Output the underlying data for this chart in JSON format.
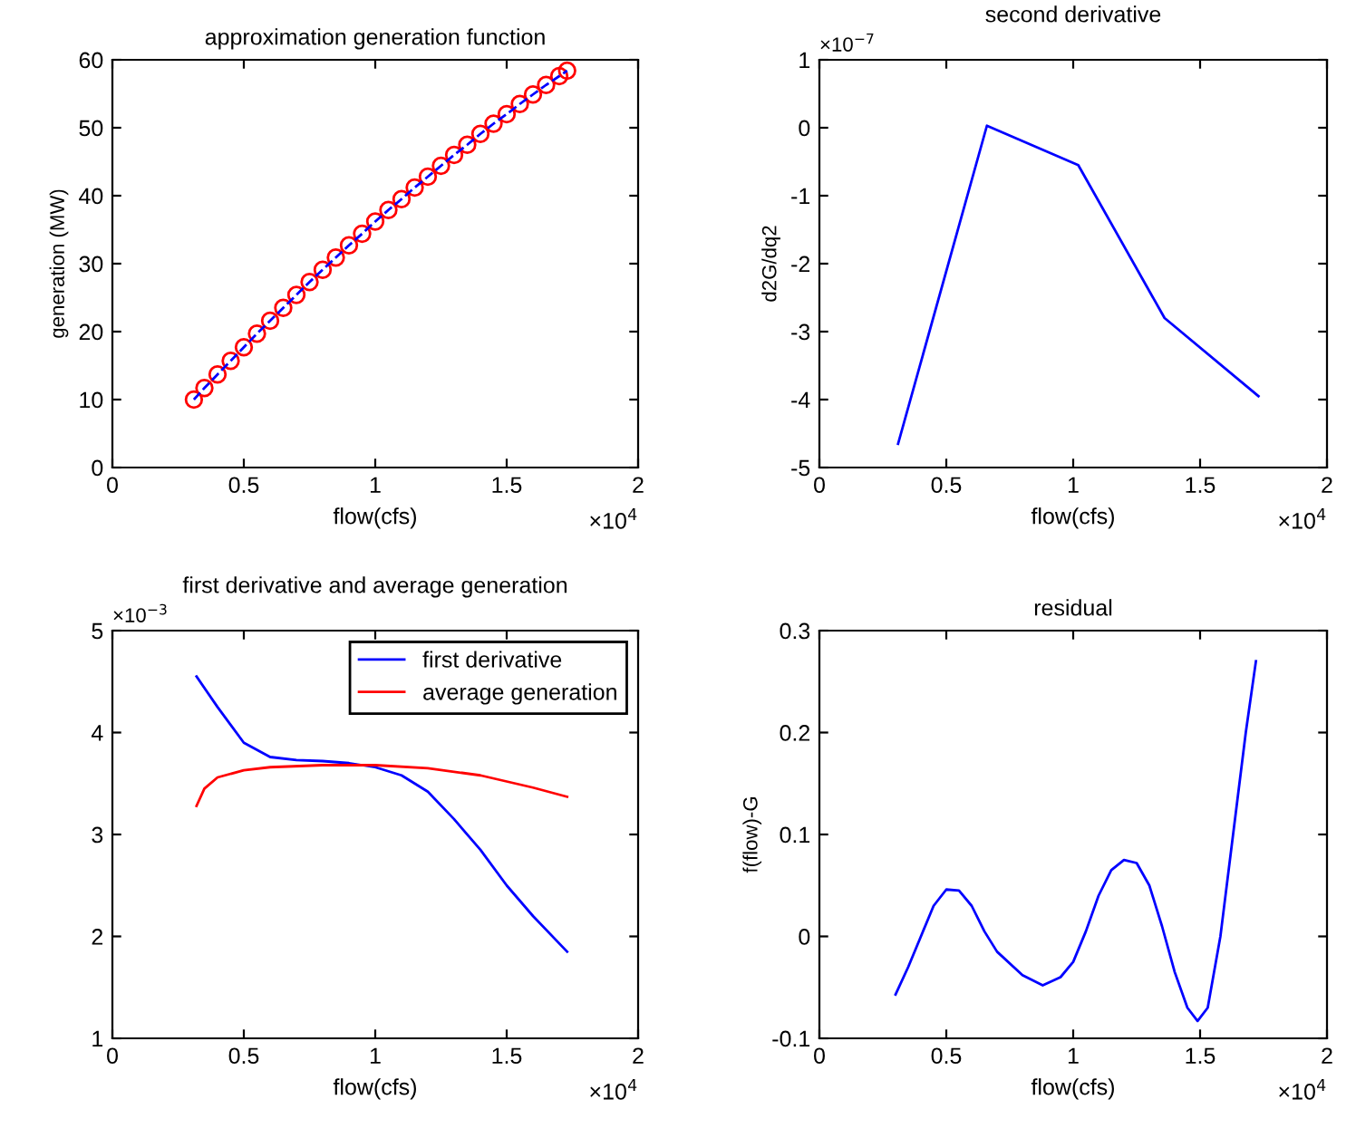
{
  "chart_data": [
    {
      "type": "scatter",
      "title": "approximation generation function",
      "xlabel": "flow(cfs)",
      "ylabel": "generation (MW)",
      "xlim": [
        0,
        2
      ],
      "xticks": [
        0,
        0.5,
        1,
        1.5,
        2
      ],
      "ylim": [
        0,
        60
      ],
      "yticks": [
        0,
        10,
        20,
        30,
        40,
        50,
        60
      ],
      "grid": false,
      "legend": false,
      "annotations": [
        "×10$^{4}$"
      ],
      "x": [
        0.31,
        0.35,
        0.4,
        0.45,
        0.5,
        0.55,
        0.6,
        0.65,
        0.7,
        0.75,
        0.8,
        0.85,
        0.9,
        0.95,
        1.0,
        1.05,
        1.1,
        1.15,
        1.2,
        1.25,
        1.3,
        1.35,
        1.4,
        1.45,
        1.5,
        1.55,
        1.6,
        1.65,
        1.7,
        1.73
      ],
      "series": [
        {
          "type": "scatter",
          "color": "#ff0000",
          "marker": "circle",
          "values": [
            10.0,
            11.7,
            13.7,
            15.7,
            17.7,
            19.7,
            21.6,
            23.5,
            25.4,
            27.3,
            29.1,
            30.9,
            32.7,
            34.4,
            36.2,
            37.9,
            39.5,
            41.2,
            42.8,
            44.4,
            46.0,
            47.5,
            49.1,
            50.6,
            52.0,
            53.5,
            54.9,
            56.3,
            57.6,
            58.4
          ]
        },
        {
          "type": "line",
          "color": "#0000ff",
          "line_style": "dashed",
          "values": [
            10.0,
            11.7,
            13.7,
            15.7,
            17.7,
            19.7,
            21.6,
            23.5,
            25.4,
            27.3,
            29.1,
            30.9,
            32.7,
            34.4,
            36.2,
            37.9,
            39.5,
            41.2,
            42.8,
            44.4,
            46.0,
            47.5,
            49.1,
            50.6,
            52.0,
            53.5,
            54.9,
            56.3,
            57.6,
            58.4
          ]
        }
      ]
    },
    {
      "type": "line",
      "title": "second derivative",
      "xlabel": "flow(cfs)",
      "ylabel": "d2G/dq2",
      "xlim": [
        0,
        2
      ],
      "xticks": [
        0,
        0.5,
        1,
        1.5,
        2
      ],
      "ylim": [
        -5,
        1
      ],
      "yticks": [
        -5,
        -4,
        -3,
        -2,
        -1,
        0,
        1
      ],
      "grid": false,
      "legend": false,
      "annotations": [
        "×10$^{4}$",
        "×10$^{−7}$"
      ],
      "x": [
        0.31,
        0.66,
        1.02,
        1.36,
        1.73
      ],
      "series": [
        {
          "color": "#0000ff",
          "values": [
            -4.65,
            0.03,
            -0.55,
            -2.8,
            -3.95
          ]
        }
      ]
    },
    {
      "type": "line",
      "title": "first derivative and average generation",
      "xlabel": "flow(cfs)",
      "xlim": [
        0,
        2
      ],
      "xticks": [
        0,
        0.5,
        1,
        1.5,
        2
      ],
      "ylim": [
        1,
        5
      ],
      "yticks": [
        1,
        2,
        3,
        4,
        5
      ],
      "grid": false,
      "legend": "top right",
      "annotations": [
        "×10$^{4}$",
        "×10$^{−3}$"
      ],
      "series": [
        {
          "name": "first derivative",
          "color": "#0000ff",
          "x": [
            0.32,
            0.4,
            0.5,
            0.6,
            0.7,
            0.8,
            0.9,
            1.0,
            1.1,
            1.2,
            1.3,
            1.4,
            1.5,
            1.6,
            1.73
          ],
          "values": [
            4.55,
            4.25,
            3.9,
            3.76,
            3.73,
            3.72,
            3.7,
            3.66,
            3.58,
            3.42,
            3.15,
            2.85,
            2.5,
            2.2,
            1.85
          ]
        },
        {
          "name": "average generation",
          "color": "#ff0000",
          "x": [
            0.32,
            0.35,
            0.4,
            0.5,
            0.6,
            0.8,
            1.0,
            1.2,
            1.4,
            1.6,
            1.73
          ],
          "values": [
            3.28,
            3.45,
            3.56,
            3.63,
            3.66,
            3.68,
            3.68,
            3.65,
            3.58,
            3.46,
            3.37
          ]
        }
      ]
    },
    {
      "type": "line",
      "title": "residual",
      "xlabel": "flow(cfs)",
      "ylabel": "f(flow)-G",
      "xlim": [
        0,
        2
      ],
      "xticks": [
        0,
        0.5,
        1,
        1.5,
        2
      ],
      "ylim": [
        -0.1,
        0.3
      ],
      "yticks": [
        -0.1,
        0,
        0.1,
        0.2,
        0.3
      ],
      "grid": false,
      "legend": false,
      "annotations": [
        "×10$^{4}$"
      ],
      "x": [
        0.3,
        0.35,
        0.4,
        0.45,
        0.5,
        0.55,
        0.6,
        0.65,
        0.7,
        0.8,
        0.88,
        0.95,
        1.0,
        1.05,
        1.1,
        1.15,
        1.2,
        1.25,
        1.3,
        1.35,
        1.4,
        1.45,
        1.49,
        1.53,
        1.58,
        1.63,
        1.68,
        1.72
      ],
      "series": [
        {
          "color": "#0000ff",
          "values": [
            -0.057,
            -0.03,
            0.0,
            0.03,
            0.046,
            0.045,
            0.03,
            0.005,
            -0.015,
            -0.038,
            -0.048,
            -0.04,
            -0.025,
            0.005,
            0.04,
            0.065,
            0.075,
            0.072,
            0.05,
            0.01,
            -0.035,
            -0.07,
            -0.083,
            -0.07,
            0.0,
            0.1,
            0.2,
            0.27
          ]
        }
      ]
    }
  ]
}
